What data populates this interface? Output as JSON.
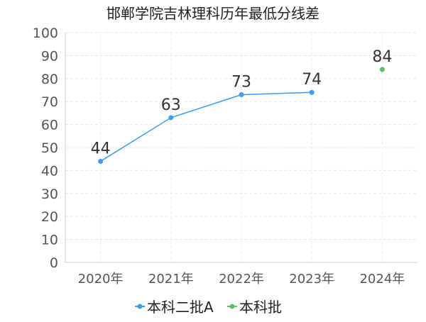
{
  "chart_data": {
    "type": "line",
    "title": "邯郸学院吉林理科历年最低分线差",
    "categories": [
      "2020年",
      "2021年",
      "2022年",
      "2023年",
      "2024年"
    ],
    "ylim": [
      0,
      100
    ],
    "yticks": [
      0,
      10,
      20,
      30,
      40,
      50,
      60,
      70,
      80,
      90,
      100
    ],
    "grid": true,
    "legend_position": "bottom",
    "series": [
      {
        "name": "本科二批A",
        "color": "#3d9df0",
        "values": [
          44,
          63,
          73,
          74,
          null
        ]
      },
      {
        "name": "本科批",
        "color": "#5cbc68",
        "values": [
          null,
          null,
          null,
          null,
          84
        ]
      }
    ]
  }
}
